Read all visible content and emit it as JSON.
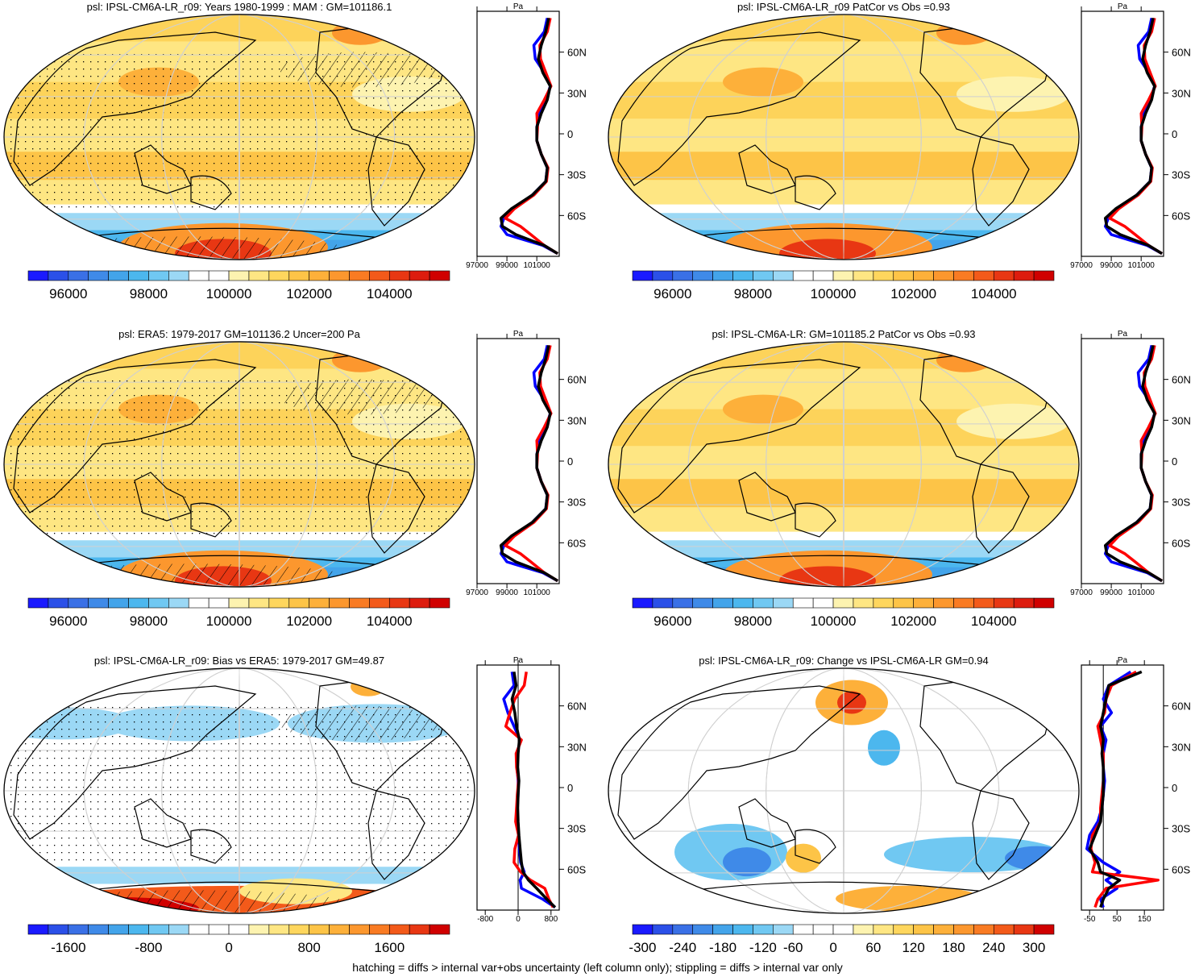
{
  "figure": {
    "footer": "hatching = diffs > internal var+obs uncertainty (left column only); stippling = diffs > internal var only"
  },
  "colors": {
    "obs": "#000000",
    "model_run": "#ff0000",
    "model_ensemble": "#0000ff",
    "white": "#ffffff"
  },
  "scales": {
    "abs": {
      "colors": [
        "#1a1aff",
        "#2b50e8",
        "#3a70e6",
        "#3f8ae8",
        "#43a4ea",
        "#4cb7ee",
        "#70c8f2",
        "#9bd8f5",
        "#ffffff",
        "#ffffff",
        "#fdf3b0",
        "#fee683",
        "#fed65d",
        "#fdc447",
        "#fdb03a",
        "#fc972e",
        "#f97b23",
        "#f35a1a",
        "#e83713",
        "#dd1c0e",
        "#d00000"
      ],
      "tick_labels": [
        "96000",
        "98000",
        "100000",
        "102000",
        "104000"
      ],
      "tick_index": [
        2,
        6,
        10,
        14,
        18
      ]
    },
    "bias": {
      "colors": [
        "#1a1aff",
        "#2b50e8",
        "#3a70e6",
        "#3f8ae8",
        "#43a4ea",
        "#4cb7ee",
        "#70c8f2",
        "#9bd8f5",
        "#ffffff",
        "#ffffff",
        "#ffffff",
        "#fdf3b0",
        "#fee683",
        "#fed65d",
        "#fdc447",
        "#fdb03a",
        "#fc972e",
        "#f97b23",
        "#f35a1a",
        "#e83713",
        "#d00000"
      ],
      "tick_labels": [
        "-1600",
        "-800",
        "0",
        "800",
        "1600"
      ],
      "tick_index": [
        2,
        6,
        10,
        14,
        18
      ]
    },
    "change": {
      "colors": [
        "#1a1aff",
        "#2b50e8",
        "#3a70e6",
        "#3f8ae8",
        "#43a4ea",
        "#4cb7ee",
        "#70c8f2",
        "#9bd8f5",
        "#ffffff",
        "#ffffff",
        "#ffffff",
        "#fdf3b0",
        "#fee683",
        "#fed65d",
        "#fdc447",
        "#fdb03a",
        "#fc972e",
        "#f97b23",
        "#f35a1a",
        "#e83713",
        "#d00000"
      ],
      "tick_labels": [
        "-300",
        "-240",
        "-180",
        "-120",
        "-60",
        "0",
        "60",
        "120",
        "180",
        "240",
        "300"
      ],
      "tick_index": [
        0.5,
        2.5,
        4.5,
        6.5,
        8,
        10,
        12,
        14,
        16,
        18,
        20
      ]
    }
  },
  "chart_data": [
    {
      "id": "p1",
      "type": "contour-map",
      "title": "psl: IPSL-CM6A-LR_r09: Years 1980-1999 : MAM : GM=101186.1",
      "variable": "psl",
      "scale": "abs",
      "hatching": true,
      "stippling": true,
      "profile": {
        "unit_label": "Pa",
        "x_ticks": [
          "97000",
          "99000",
          "101000"
        ],
        "xlim": [
          97000,
          102500
        ],
        "lat_ticks": [
          "60N",
          "30N",
          "0",
          "30S",
          "60S"
        ],
        "lat_values": [
          60,
          30,
          0,
          -30,
          -60
        ],
        "ylim": [
          -90,
          90
        ],
        "lat": [
          85,
          75,
          65,
          55,
          45,
          35,
          25,
          15,
          5,
          -5,
          -15,
          -25,
          -35,
          -45,
          -55,
          -62,
          -68,
          -74,
          -82,
          -88
        ],
        "obs": [
          101800,
          101600,
          101300,
          101100,
          101400,
          101900,
          101700,
          101300,
          101000,
          101000,
          101300,
          101700,
          101600,
          100700,
          99300,
          98600,
          98700,
          99600,
          101500,
          102400
        ],
        "model_run": [
          101900,
          101700,
          101200,
          101250,
          101600,
          101950,
          101500,
          101000,
          101050,
          101000,
          101300,
          101750,
          101650,
          100800,
          99500,
          98900,
          99900,
          100600,
          101500,
          102400
        ],
        "model_ensemble": [
          101700,
          101500,
          100800,
          100900,
          101500,
          101900,
          101600,
          101200,
          101000,
          101000,
          101300,
          101700,
          101600,
          100700,
          99400,
          98800,
          98600,
          99000,
          101400,
          102400
        ]
      }
    },
    {
      "id": "p2",
      "type": "contour-map",
      "title": "psl: IPSL-CM6A-LR_r09 PatCor vs Obs =0.93",
      "variable": "psl",
      "scale": "abs",
      "hatching": false,
      "stippling": false,
      "profile": {
        "unit_label": "Pa",
        "x_ticks": [
          "97000",
          "99000",
          "101000"
        ],
        "xlim": [
          97000,
          102500
        ],
        "lat_ticks": [
          "60N",
          "30N",
          "0",
          "30S",
          "60S"
        ],
        "lat_values": [
          60,
          30,
          0,
          -30,
          -60
        ],
        "ylim": [
          -90,
          90
        ],
        "lat": [
          85,
          75,
          65,
          55,
          45,
          35,
          25,
          15,
          5,
          -5,
          -15,
          -25,
          -35,
          -45,
          -55,
          -62,
          -68,
          -74,
          -82,
          -88
        ],
        "obs": [
          101800,
          101600,
          101300,
          101100,
          101400,
          101900,
          101700,
          101300,
          101000,
          101000,
          101300,
          101700,
          101600,
          100700,
          99300,
          98600,
          98700,
          99600,
          101500,
          102400
        ],
        "model_run": [
          101900,
          101700,
          101200,
          101250,
          101600,
          101950,
          101500,
          101000,
          101050,
          101000,
          101300,
          101750,
          101650,
          100800,
          99500,
          98900,
          99900,
          100600,
          101500,
          102400
        ],
        "model_ensemble": [
          101700,
          101500,
          100800,
          100900,
          101500,
          101900,
          101600,
          101200,
          101000,
          101000,
          101300,
          101700,
          101600,
          100700,
          99400,
          98800,
          98600,
          99000,
          101400,
          102400
        ]
      }
    },
    {
      "id": "p3",
      "type": "contour-map",
      "title": "psl: ERA5: 1979-2017 GM=101136.2 Uncer=200 Pa",
      "variable": "psl",
      "scale": "abs",
      "hatching": true,
      "stippling": true,
      "profile": {
        "unit_label": "Pa",
        "x_ticks": [
          "97000",
          "99000",
          "101000"
        ],
        "xlim": [
          97000,
          102500
        ],
        "lat_ticks": [
          "60N",
          "30N",
          "0",
          "30S",
          "60S"
        ],
        "lat_values": [
          60,
          30,
          0,
          -30,
          -60
        ],
        "ylim": [
          -90,
          90
        ],
        "lat": [
          85,
          75,
          65,
          55,
          45,
          35,
          25,
          15,
          5,
          -5,
          -15,
          -25,
          -35,
          -45,
          -55,
          -62,
          -68,
          -74,
          -82,
          -88
        ],
        "obs": [
          101800,
          101600,
          101300,
          101100,
          101400,
          101900,
          101700,
          101300,
          101000,
          101000,
          101300,
          101700,
          101600,
          100700,
          99300,
          98600,
          98700,
          99600,
          101500,
          102400
        ],
        "model_run": [
          101900,
          101700,
          101200,
          101250,
          101600,
          101950,
          101500,
          101000,
          101050,
          101000,
          101300,
          101750,
          101650,
          100800,
          99500,
          98900,
          99900,
          100600,
          101500,
          102400
        ],
        "model_ensemble": [
          101700,
          101500,
          100800,
          100900,
          101500,
          101900,
          101600,
          101200,
          101000,
          101000,
          101300,
          101700,
          101600,
          100700,
          99400,
          98800,
          98600,
          99000,
          101400,
          102400
        ]
      }
    },
    {
      "id": "p4",
      "type": "contour-map",
      "title": "psl: IPSL-CM6A-LR: GM=101185.2 PatCor vs Obs =0.93",
      "variable": "psl",
      "scale": "abs",
      "hatching": false,
      "stippling": false,
      "profile": {
        "unit_label": "Pa",
        "x_ticks": [
          "97000",
          "99000",
          "101000"
        ],
        "xlim": [
          97000,
          102500
        ],
        "lat_ticks": [
          "60N",
          "30N",
          "0",
          "30S",
          "60S"
        ],
        "lat_values": [
          60,
          30,
          0,
          -30,
          -60
        ],
        "ylim": [
          -90,
          90
        ],
        "lat": [
          85,
          75,
          65,
          55,
          45,
          35,
          25,
          15,
          5,
          -5,
          -15,
          -25,
          -35,
          -45,
          -55,
          -62,
          -68,
          -74,
          -82,
          -88
        ],
        "obs": [
          101800,
          101600,
          101300,
          101100,
          101400,
          101900,
          101700,
          101300,
          101000,
          101000,
          101300,
          101700,
          101600,
          100700,
          99300,
          98600,
          98700,
          99600,
          101500,
          102400
        ],
        "model_run": [
          101900,
          101700,
          101200,
          101250,
          101600,
          101950,
          101500,
          101000,
          101050,
          101000,
          101300,
          101750,
          101650,
          100800,
          99500,
          98900,
          99900,
          100600,
          101500,
          102400
        ],
        "model_ensemble": [
          101700,
          101500,
          100800,
          100900,
          101500,
          101900,
          101600,
          101200,
          101000,
          101000,
          101300,
          101700,
          101600,
          100700,
          99400,
          98800,
          98600,
          99000,
          101400,
          102400
        ]
      }
    },
    {
      "id": "p5",
      "type": "contour-map",
      "title": "psl: IPSL-CM6A-LR_r09: Bias vs ERA5: 1979-2017 GM=49.87",
      "variable": "psl",
      "scale": "bias",
      "hatching": true,
      "stippling": true,
      "profile": {
        "unit_label": "Pa",
        "x_ticks": [
          "-800",
          "0",
          "800"
        ],
        "xlim": [
          -1000,
          1000
        ],
        "zero_line": 0,
        "lat_ticks": [
          "60N",
          "30N",
          "0",
          "30S",
          "60S"
        ],
        "lat_values": [
          60,
          30,
          0,
          -30,
          -60
        ],
        "ylim": [
          -90,
          90
        ],
        "lat": [
          85,
          75,
          65,
          55,
          45,
          35,
          25,
          15,
          5,
          -5,
          -15,
          -25,
          -35,
          -45,
          -55,
          -62,
          -68,
          -74,
          -82,
          -88
        ],
        "obs": [
          -100,
          -50,
          -150,
          -80,
          -40,
          30,
          0,
          -10,
          20,
          0,
          -10,
          0,
          20,
          50,
          80,
          120,
          250,
          450,
          700,
          900
        ],
        "model_run": [
          200,
          150,
          -80,
          -200,
          -300,
          80,
          -50,
          -40,
          10,
          -20,
          -40,
          -60,
          10,
          -80,
          -100,
          60,
          300,
          650,
          750,
          850
        ],
        "model_ensemble": [
          -150,
          -100,
          -350,
          -250,
          -100,
          50,
          -20,
          -30,
          0,
          0,
          -20,
          -30,
          10,
          30,
          60,
          150,
          50,
          80,
          600,
          900
        ]
      }
    },
    {
      "id": "p6",
      "type": "contour-map",
      "title": "psl: IPSL-CM6A-LR_r09: Change vs IPSL-CM6A-LR GM=0.94",
      "variable": "psl",
      "scale": "change",
      "hatching": false,
      "stippling": false,
      "profile": {
        "unit_label": "Pa",
        "x_ticks": [
          "-50",
          "50",
          "150"
        ],
        "xlim": [
          -80,
          220
        ],
        "zero_line": 0,
        "lat_ticks": [
          "60N",
          "30N",
          "0",
          "30S",
          "60S"
        ],
        "lat_values": [
          60,
          30,
          0,
          -30,
          -60
        ],
        "ylim": [
          -90,
          90
        ],
        "lat": [
          85,
          75,
          65,
          55,
          45,
          35,
          25,
          15,
          5,
          -5,
          -15,
          -25,
          -35,
          -45,
          -55,
          -62,
          -68,
          -74,
          -82,
          -88
        ],
        "obs": [
          140,
          20,
          10,
          0,
          -10,
          0,
          -5,
          0,
          0,
          0,
          -5,
          -10,
          -30,
          -50,
          -20,
          -10,
          60,
          20,
          0,
          -10
        ],
        "model_run": [
          120,
          30,
          10,
          5,
          -20,
          -10,
          0,
          0,
          0,
          -5,
          -10,
          -10,
          -40,
          -45,
          -30,
          -40,
          200,
          10,
          -20,
          -30
        ],
        "model_ensemble": [
          100,
          20,
          0,
          30,
          -10,
          10,
          0,
          0,
          5,
          0,
          -5,
          -20,
          -50,
          -60,
          0,
          60,
          10,
          50,
          -10,
          0
        ]
      }
    }
  ]
}
